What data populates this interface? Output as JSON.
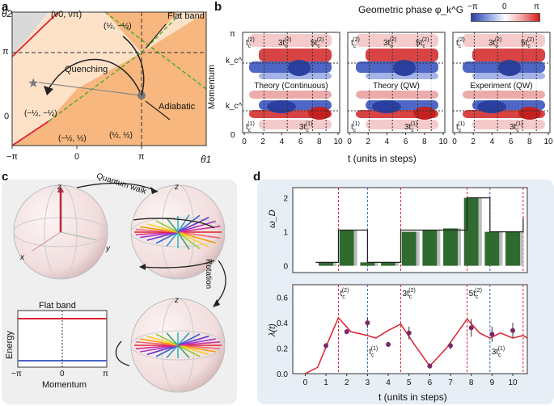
{
  "panels": {
    "a": "a",
    "b": "b",
    "c": "c",
    "d": "d"
  },
  "a": {
    "y_axis": "θ2",
    "x_axis": "θ1",
    "x_ticks": [
      "−π",
      "0",
      "π"
    ],
    "y_ticks": [
      "π",
      "0"
    ],
    "top_label": "(ν0, νπ)",
    "flat_band": "Flat band",
    "quenching": "Quenching",
    "adiabatic": "Adiabatic",
    "regions": [
      "(½, −½)",
      "(−½, −½)",
      "(−½, ½)",
      "(½, ½)"
    ]
  },
  "b": {
    "colorbar_title": "Geometric phase φ_k^G",
    "colorbar_ticks": [
      "−π",
      "0",
      "π"
    ],
    "ylabel": "Momentum",
    "xlabel": "t (units in steps)",
    "y_ticks": [
      "π",
      "k_c^(2)",
      "k_c^(1)",
      "0"
    ],
    "x_ticks": [
      "0",
      "2",
      "4",
      "6",
      "8",
      "10"
    ],
    "subplots": [
      {
        "title": "Theory (Continuous)",
        "marks": [
          "t_c^(2)",
          "3t_c^(2)",
          "5t_c^(2)",
          "t_c^(1)",
          "3t_c^(1)"
        ]
      },
      {
        "title": "Theory (QW)",
        "marks": [
          "t_c^(2)",
          "3t_c^(2)",
          "5t_c^(2)",
          "t_c^(1)",
          "3t_c^(1)"
        ]
      },
      {
        "title": "Experiment (QW)",
        "marks": [
          "t_c^(2)",
          "3t_c^(2)",
          "5t_c^(2)",
          "t_c^(1)",
          "3t_c^(1)"
        ]
      }
    ]
  },
  "c": {
    "quantum_walk": "Quantum walk",
    "rotation": "Rotation",
    "flat_band": "Flat band",
    "energy": "Energy",
    "momentum": "Momentum",
    "x_ticks": [
      "−π",
      "0",
      "π"
    ],
    "axes": [
      "z",
      "x",
      "y"
    ]
  },
  "d": {
    "top_ylabel": "ω_D",
    "top_yticks": [
      "2",
      "1",
      "0"
    ],
    "bottom_ylabel": "λ(t)",
    "bottom_yticks": [
      "0.6",
      "0.4",
      "0.2",
      "0.0"
    ],
    "xlabel": "t (units in steps)",
    "x_ticks": [
      "0",
      "1",
      "2",
      "3",
      "4",
      "5",
      "6",
      "7",
      "8",
      "9",
      "10"
    ],
    "marks": [
      "t_c^(2)",
      "3t_c^(2)",
      "5t_c^(2)",
      "t_c^(1)",
      "3t_c^(1)"
    ]
  },
  "chart_data": [
    {
      "type": "bar",
      "title": "",
      "xlabel": "t (units in steps)",
      "ylabel": "ω_D",
      "x": [
        1,
        2,
        3,
        4,
        5,
        6,
        7,
        8,
        9,
        10
      ],
      "series": [
        {
          "values": [
            0.1,
            1.05,
            0.1,
            0.1,
            1.0,
            1.05,
            1.1,
            2.0,
            1.0,
            1.0
          ]
        }
      ],
      "ylim": [
        -0.2,
        2.3
      ]
    },
    {
      "type": "scatter",
      "title": "",
      "xlabel": "t (units in steps)",
      "ylabel": "λ(t)",
      "x": [
        1,
        2,
        3,
        4,
        5,
        6,
        7,
        8,
        9,
        10
      ],
      "values": [
        0.22,
        0.33,
        0.4,
        0.23,
        0.32,
        0.06,
        0.22,
        0.36,
        0.31,
        0.34
      ],
      "errors": [
        0.02,
        0.02,
        0.04,
        0.02,
        0.05,
        0.02,
        0.03,
        0.07,
        0.06,
        0.06
      ],
      "ylim": [
        0,
        0.7
      ],
      "xlim": [
        -0.6,
        10.7
      ]
    }
  ]
}
